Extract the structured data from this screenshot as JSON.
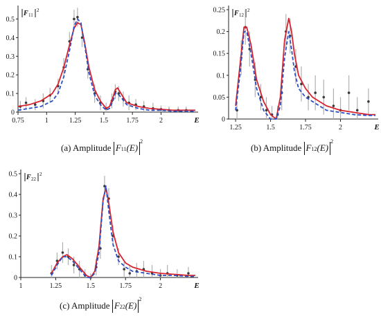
{
  "captions": {
    "a": {
      "prefix": "(a)  Amplitude",
      "func": "F",
      "sub": "11",
      "arg": "(E)",
      "sup": "2"
    },
    "b": {
      "prefix": "(b)  Amplitude",
      "func": "F",
      "sub": "12",
      "arg": "(E)",
      "sup": "2"
    },
    "c": {
      "prefix": "(c)  Amplitude",
      "func": "F",
      "sub": "22",
      "arg": "(E)",
      "sup": "2"
    }
  },
  "colors": {
    "red_curve": "#d7232f",
    "blue_curve": "#2b4fc4",
    "error_bar": "#b0b0b0",
    "marker": "#3a3a3a",
    "axis": "#222222"
  },
  "chart_data": [
    {
      "type": "line",
      "id": "a",
      "ylabel": "|F11|²",
      "ylabel_func": "F",
      "ylabel_sub": "11",
      "ylabel_sup": "2",
      "xlabel": "E",
      "xlim": [
        0.75,
        2.3
      ],
      "ylim": [
        0,
        0.55
      ],
      "xticks": [
        0.75,
        1,
        1.25,
        1.5,
        1.75,
        2
      ],
      "xtick_labels": [
        "0.75",
        "1",
        "1.25",
        "1.5",
        "1.75",
        "2"
      ],
      "yticks": [
        0,
        0.1,
        0.2,
        0.3,
        0.4,
        0.5
      ],
      "ytick_labels": [
        "0",
        "0.1",
        "0.2",
        "0.3",
        "0.4",
        "0.5"
      ],
      "series": [
        {
          "style": "solid-red",
          "x": [
            0.75,
            0.85,
            0.95,
            1.05,
            1.1,
            1.15,
            1.2,
            1.24,
            1.27,
            1.3,
            1.33,
            1.37,
            1.42,
            1.47,
            1.52,
            1.55,
            1.58,
            1.6,
            1.62,
            1.65,
            1.7,
            1.8,
            1.9,
            2.0,
            2.1,
            2.2,
            2.3
          ],
          "y": [
            0.03,
            0.04,
            0.06,
            0.1,
            0.15,
            0.24,
            0.36,
            0.45,
            0.48,
            0.47,
            0.38,
            0.24,
            0.12,
            0.06,
            0.02,
            0.03,
            0.08,
            0.12,
            0.13,
            0.1,
            0.05,
            0.03,
            0.02,
            0.015,
            0.01,
            0.01,
            0.01
          ]
        },
        {
          "style": "dashed-blue",
          "x": [
            0.75,
            0.85,
            0.95,
            1.05,
            1.1,
            1.15,
            1.2,
            1.24,
            1.27,
            1.3,
            1.33,
            1.37,
            1.42,
            1.47,
            1.52,
            1.55,
            1.58,
            1.6,
            1.62,
            1.65,
            1.7,
            1.8,
            1.9,
            2.0,
            2.1,
            2.2,
            2.3
          ],
          "y": [
            0.01,
            0.02,
            0.03,
            0.06,
            0.1,
            0.19,
            0.33,
            0.46,
            0.5,
            0.48,
            0.37,
            0.21,
            0.09,
            0.04,
            0.01,
            0.02,
            0.06,
            0.1,
            0.1,
            0.08,
            0.04,
            0.02,
            0.01,
            0.01,
            0.005,
            0.005,
            0.005
          ]
        }
      ],
      "points": {
        "x": [
          0.77,
          0.82,
          0.9,
          0.97,
          1.03,
          1.1,
          1.15,
          1.2,
          1.24,
          1.27,
          1.31,
          1.36,
          1.42,
          1.47,
          1.52,
          1.57,
          1.6,
          1.63,
          1.67,
          1.72,
          1.78,
          1.85,
          1.93,
          2.0,
          2.07,
          2.15,
          2.22
        ],
        "y": [
          0.03,
          0.05,
          0.04,
          0.06,
          0.09,
          0.14,
          0.24,
          0.38,
          0.5,
          0.51,
          0.4,
          0.23,
          0.1,
          0.05,
          0.02,
          0.06,
          0.11,
          0.1,
          0.07,
          0.05,
          0.04,
          0.03,
          0.02,
          0.015,
          0.01,
          0.01,
          0.01
        ],
        "err": [
          0.03,
          0.03,
          0.03,
          0.04,
          0.04,
          0.04,
          0.05,
          0.05,
          0.05,
          0.05,
          0.05,
          0.05,
          0.05,
          0.04,
          0.03,
          0.04,
          0.04,
          0.04,
          0.04,
          0.04,
          0.03,
          0.03,
          0.03,
          0.02,
          0.02,
          0.02,
          0.02
        ]
      }
    },
    {
      "type": "line",
      "id": "b",
      "ylabel": "|F12|²",
      "ylabel_func": "F",
      "ylabel_sub": "12",
      "ylabel_sup": "2",
      "xlabel": "E",
      "xlim": [
        1.2,
        2.25
      ],
      "ylim": [
        0,
        0.25
      ],
      "xticks": [
        1.25,
        1.5,
        1.75,
        2
      ],
      "xtick_labels": [
        "1.25",
        "1.5",
        "1.75",
        "2"
      ],
      "yticks": [
        0,
        0.05,
        0.1,
        0.15,
        0.2,
        0.25
      ],
      "ytick_labels": [
        "0",
        "0.05",
        "0.1",
        "0.15",
        "0.2",
        "0.25"
      ],
      "series": [
        {
          "style": "solid-red",
          "x": [
            1.25,
            1.28,
            1.31,
            1.33,
            1.36,
            1.4,
            1.45,
            1.5,
            1.54,
            1.57,
            1.6,
            1.63,
            1.65,
            1.67,
            1.7,
            1.75,
            1.8,
            1.9,
            2.0,
            2.1,
            2.2,
            2.25
          ],
          "y": [
            0.03,
            0.12,
            0.21,
            0.21,
            0.17,
            0.09,
            0.04,
            0.01,
            0.0,
            0.05,
            0.18,
            0.23,
            0.2,
            0.15,
            0.1,
            0.07,
            0.05,
            0.03,
            0.02,
            0.015,
            0.01,
            0.01
          ]
        },
        {
          "style": "dashed-blue",
          "x": [
            1.25,
            1.28,
            1.31,
            1.33,
            1.36,
            1.4,
            1.45,
            1.5,
            1.54,
            1.57,
            1.6,
            1.63,
            1.65,
            1.67,
            1.7,
            1.75,
            1.8,
            1.9,
            2.0,
            2.1,
            2.2,
            2.25
          ],
          "y": [
            0.02,
            0.1,
            0.2,
            0.2,
            0.15,
            0.07,
            0.02,
            0.0,
            0.0,
            0.03,
            0.14,
            0.2,
            0.16,
            0.11,
            0.07,
            0.05,
            0.04,
            0.02,
            0.015,
            0.01,
            0.008,
            0.008
          ]
        }
      ],
      "points": {
        "x": [
          1.26,
          1.29,
          1.32,
          1.35,
          1.39,
          1.43,
          1.47,
          1.51,
          1.55,
          1.58,
          1.61,
          1.64,
          1.68,
          1.72,
          1.77,
          1.82,
          1.88,
          1.95,
          2.0,
          2.06,
          2.12,
          2.2
        ],
        "y": [
          0.02,
          0.14,
          0.21,
          0.16,
          0.09,
          0.05,
          0.02,
          0.01,
          0.01,
          0.06,
          0.2,
          0.19,
          0.12,
          0.08,
          0.05,
          0.06,
          0.05,
          0.03,
          0.02,
          0.06,
          0.02,
          0.04
        ],
        "err": [
          0.02,
          0.04,
          0.04,
          0.04,
          0.04,
          0.03,
          0.03,
          0.02,
          0.02,
          0.04,
          0.04,
          0.04,
          0.04,
          0.04,
          0.03,
          0.04,
          0.04,
          0.04,
          0.03,
          0.04,
          0.03,
          0.03
        ]
      }
    },
    {
      "type": "line",
      "id": "c",
      "ylabel": "|F22|²",
      "ylabel_func": "F",
      "ylabel_sub": "22",
      "ylabel_sup": "2",
      "xlabel": "E",
      "xlim": [
        1.0,
        2.25
      ],
      "ylim": [
        0,
        0.5
      ],
      "xticks": [
        1,
        1.25,
        1.5,
        1.75,
        2
      ],
      "xtick_labels": [
        "1",
        "1.25",
        "1.5",
        "1.75",
        "2"
      ],
      "yticks": [
        0,
        0.1,
        0.2,
        0.3,
        0.4,
        0.5
      ],
      "ytick_labels": [
        "0",
        "0.1",
        "0.2",
        "0.3",
        "0.4",
        "0.5"
      ],
      "series": [
        {
          "style": "solid-red",
          "x": [
            1.22,
            1.26,
            1.3,
            1.33,
            1.37,
            1.42,
            1.47,
            1.5,
            1.53,
            1.56,
            1.59,
            1.61,
            1.63,
            1.66,
            1.7,
            1.75,
            1.8,
            1.9,
            2.0,
            2.1,
            2.2,
            2.25
          ],
          "y": [
            0.02,
            0.07,
            0.1,
            0.11,
            0.09,
            0.05,
            0.01,
            0.0,
            0.03,
            0.15,
            0.38,
            0.43,
            0.36,
            0.22,
            0.12,
            0.07,
            0.05,
            0.03,
            0.02,
            0.015,
            0.01,
            0.01
          ]
        },
        {
          "style": "dashed-blue",
          "x": [
            1.22,
            1.26,
            1.3,
            1.33,
            1.37,
            1.42,
            1.47,
            1.5,
            1.53,
            1.56,
            1.59,
            1.61,
            1.63,
            1.66,
            1.7,
            1.75,
            1.8,
            1.9,
            2.0,
            2.1,
            2.2,
            2.25
          ],
          "y": [
            0.01,
            0.06,
            0.1,
            0.1,
            0.08,
            0.04,
            0.0,
            0.0,
            0.02,
            0.12,
            0.37,
            0.44,
            0.32,
            0.16,
            0.08,
            0.05,
            0.03,
            0.02,
            0.01,
            0.01,
            0.005,
            0.005
          ]
        }
      ],
      "points": {
        "x": [
          1.22,
          1.26,
          1.3,
          1.34,
          1.38,
          1.42,
          1.46,
          1.5,
          1.54,
          1.57,
          1.6,
          1.63,
          1.66,
          1.7,
          1.74,
          1.78,
          1.83,
          1.88,
          1.94,
          2.0,
          2.05,
          2.12,
          2.2
        ],
        "y": [
          0.02,
          0.08,
          0.12,
          0.1,
          0.06,
          0.04,
          0.01,
          0.0,
          0.05,
          0.14,
          0.44,
          0.38,
          0.2,
          0.1,
          0.04,
          0.02,
          0.03,
          0.04,
          0.02,
          0.01,
          0.02,
          0.01,
          0.02
        ],
        "err": [
          0.04,
          0.04,
          0.05,
          0.04,
          0.04,
          0.04,
          0.03,
          0.02,
          0.04,
          0.05,
          0.05,
          0.05,
          0.05,
          0.04,
          0.04,
          0.04,
          0.04,
          0.04,
          0.04,
          0.03,
          0.04,
          0.03,
          0.03
        ]
      }
    }
  ]
}
